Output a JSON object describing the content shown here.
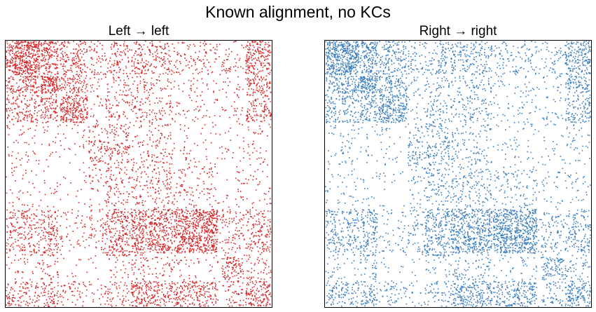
{
  "figure": {
    "suptitle": "Known alignment, no KCs"
  },
  "chart_data": [
    {
      "type": "heatmap",
      "subtype": "adjacency spy plot",
      "title": "Left → left",
      "color": "#d62728",
      "grid": false,
      "ticks": false,
      "block_bounds": [
        0,
        13,
        20,
        31,
        37,
        47,
        63,
        80,
        81,
        90,
        100
      ],
      "block_density": [
        [
          0.55,
          0.35,
          0.22,
          0.12,
          0.15,
          0.18,
          0.1,
          0.05,
          0.08,
          0.3
        ],
        [
          0.3,
          0.6,
          0.25,
          0.06,
          0.1,
          0.1,
          0.05,
          0.02,
          0.05,
          0.25
        ],
        [
          0.2,
          0.25,
          0.4,
          0.05,
          0.12,
          0.12,
          0.05,
          0.02,
          0.05,
          0.2
        ],
        [
          0.05,
          0.04,
          0.04,
          0.1,
          0.15,
          0.08,
          0.03,
          0.02,
          0.03,
          0.05
        ],
        [
          0.05,
          0.03,
          0.03,
          0.18,
          0.18,
          0.1,
          0.04,
          0.02,
          0.04,
          0.05
        ],
        [
          0.04,
          0.03,
          0.02,
          0.06,
          0.12,
          0.12,
          0.08,
          0.02,
          0.04,
          0.04
        ],
        [
          0.18,
          0.22,
          0.06,
          0.1,
          0.25,
          0.35,
          0.45,
          0.05,
          0.12,
          0.18
        ],
        [
          0.08,
          0.3,
          0.02,
          0.02,
          0.4,
          0.05,
          0.02,
          0.02,
          0.04,
          0.06
        ],
        [
          0.05,
          0.1,
          0.02,
          0.02,
          0.05,
          0.1,
          0.05,
          0.01,
          0.25,
          0.1
        ],
        [
          0.18,
          0.2,
          0.1,
          0.05,
          0.12,
          0.28,
          0.25,
          0.02,
          0.12,
          0.3
        ]
      ]
    },
    {
      "type": "heatmap",
      "subtype": "adjacency spy plot",
      "title": "Right → right",
      "color": "#3a7ebf",
      "grid": false,
      "ticks": false,
      "block_bounds": [
        0,
        13,
        20,
        31,
        37,
        47,
        63,
        80,
        81,
        90,
        100
      ],
      "block_density": [
        [
          0.55,
          0.35,
          0.22,
          0.12,
          0.15,
          0.18,
          0.1,
          0.05,
          0.08,
          0.3
        ],
        [
          0.3,
          0.6,
          0.25,
          0.06,
          0.1,
          0.1,
          0.05,
          0.02,
          0.05,
          0.25
        ],
        [
          0.2,
          0.25,
          0.4,
          0.05,
          0.12,
          0.12,
          0.05,
          0.02,
          0.05,
          0.2
        ],
        [
          0.05,
          0.04,
          0.04,
          0.1,
          0.15,
          0.08,
          0.03,
          0.02,
          0.03,
          0.05
        ],
        [
          0.05,
          0.03,
          0.03,
          0.18,
          0.18,
          0.1,
          0.04,
          0.02,
          0.04,
          0.05
        ],
        [
          0.04,
          0.03,
          0.02,
          0.06,
          0.12,
          0.12,
          0.08,
          0.02,
          0.04,
          0.04
        ],
        [
          0.18,
          0.22,
          0.06,
          0.1,
          0.25,
          0.35,
          0.45,
          0.05,
          0.12,
          0.18
        ],
        [
          0.08,
          0.3,
          0.02,
          0.02,
          0.4,
          0.05,
          0.02,
          0.02,
          0.04,
          0.06
        ],
        [
          0.05,
          0.1,
          0.02,
          0.02,
          0.05,
          0.1,
          0.05,
          0.01,
          0.25,
          0.1
        ],
        [
          0.18,
          0.2,
          0.1,
          0.05,
          0.12,
          0.28,
          0.25,
          0.02,
          0.12,
          0.3
        ]
      ]
    }
  ]
}
